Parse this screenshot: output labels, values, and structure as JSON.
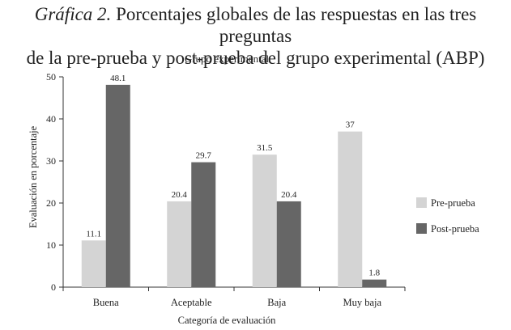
{
  "caption": {
    "label": "Gráfica 2.",
    "line1": "Porcentajes globales de las respuestas en las tres preguntas",
    "line2": "de la pre-prueba y post-prueba del grupo experimental (ABP)"
  },
  "chart_data": {
    "type": "bar",
    "title": "Grupo experimental",
    "xlabel": "Categoría de evaluación",
    "ylabel": "Evaluación en porcentaje",
    "categories": [
      "Buena",
      "Aceptable",
      "Baja",
      "Muy baja"
    ],
    "ylim": [
      0,
      50
    ],
    "yticks": [
      0,
      10,
      20,
      30,
      40,
      50
    ],
    "grid": false,
    "legend_position": "right",
    "series": [
      {
        "name": "Pre-prueba",
        "color": "#d4d4d4",
        "values": [
          11.1,
          20.4,
          31.5,
          37
        ],
        "labels": [
          "11.1",
          "20.4",
          "31.5",
          "37"
        ]
      },
      {
        "name": "Post-prueba",
        "color": "#666666",
        "values": [
          48.1,
          29.7,
          20.4,
          1.8
        ],
        "labels": [
          "48.1",
          "29.7",
          "20.4",
          "1.8"
        ]
      }
    ]
  }
}
